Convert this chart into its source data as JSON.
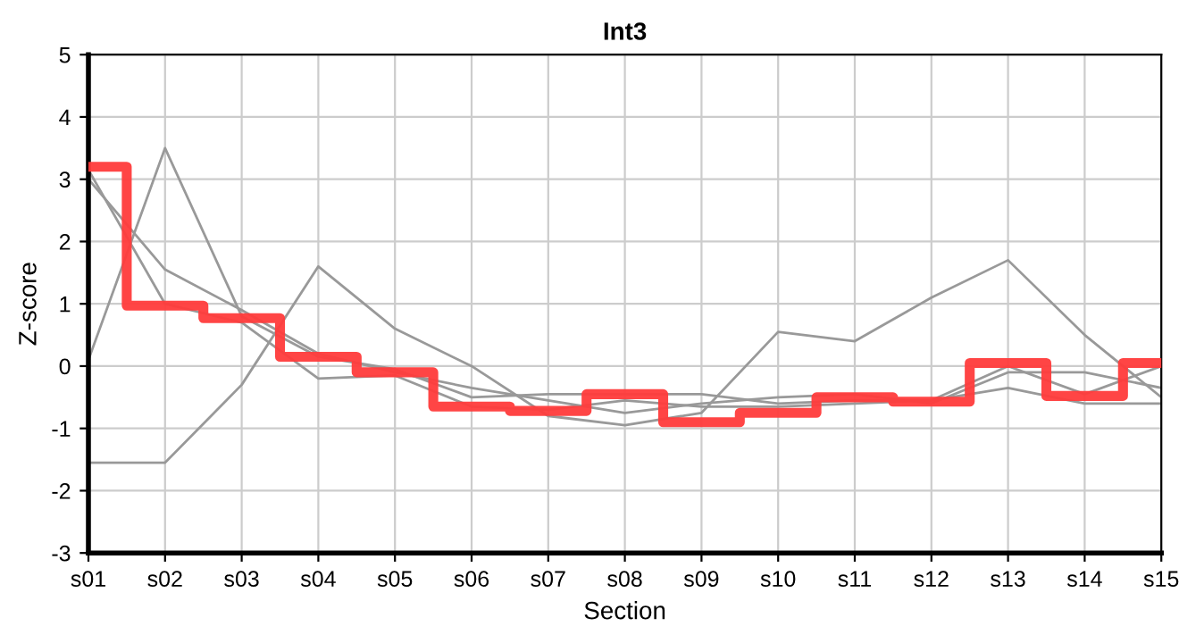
{
  "chart_data": {
    "type": "line",
    "title": "Int3",
    "xlabel": "Section",
    "ylabel": "Z-score",
    "categories": [
      "s01",
      "s02",
      "s03",
      "s04",
      "s05",
      "s06",
      "s07",
      "s08",
      "s09",
      "s10",
      "s11",
      "s12",
      "s13",
      "s14",
      "s15"
    ],
    "ylim": [
      -3,
      5
    ],
    "yticks": [
      -3,
      -2,
      -1,
      0,
      1,
      2,
      3,
      4,
      5
    ],
    "grid": true,
    "series": [
      {
        "color": "#999999",
        "values": [
          0.1,
          3.5,
          0.8,
          0.15,
          -0.05,
          -0.5,
          -0.45,
          -0.45,
          -0.45,
          -0.6,
          -0.55,
          -0.55,
          0.0,
          -0.45,
          0.0
        ]
      },
      {
        "color": "#999999",
        "values": [
          -1.55,
          -1.55,
          -0.3,
          1.6,
          0.6,
          0.0,
          -0.8,
          -0.95,
          -0.75,
          0.55,
          0.4,
          1.1,
          1.7,
          0.5,
          -0.5
        ]
      },
      {
        "color": "#999999",
        "values": [
          3.0,
          1.55,
          0.9,
          0.2,
          -0.1,
          -0.35,
          -0.55,
          -0.75,
          -0.6,
          -0.5,
          -0.45,
          -0.6,
          -0.1,
          -0.1,
          -0.35
        ]
      },
      {
        "color": "#999999",
        "values": [
          3.15,
          1.0,
          0.7,
          -0.2,
          -0.15,
          -0.65,
          -0.7,
          -0.55,
          -0.65,
          -0.65,
          -0.6,
          -0.55,
          -0.35,
          -0.6,
          -0.6
        ]
      },
      {
        "type": "step",
        "color": "#ff3b3b",
        "values": [
          3.2,
          0.97,
          0.77,
          0.15,
          -0.1,
          -0.65,
          -0.72,
          -0.45,
          -0.9,
          -0.75,
          -0.5,
          -0.57,
          0.05,
          -0.48,
          0.05
        ]
      }
    ]
  }
}
